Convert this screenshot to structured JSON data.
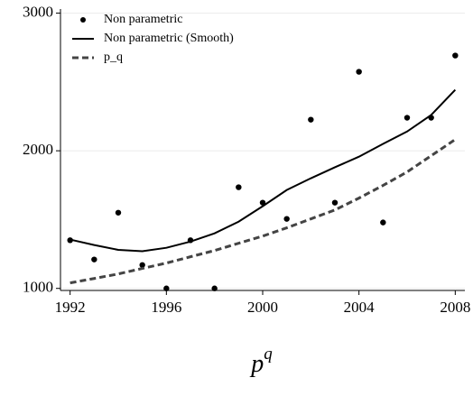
{
  "chart_data": {
    "type": "line",
    "x_label": {
      "base": "p",
      "superscript": "q"
    },
    "x": [
      1992,
      1993,
      1994,
      1995,
      1996,
      1997,
      1998,
      1999,
      2000,
      2001,
      2002,
      2003,
      2004,
      2005,
      2006,
      2007,
      2008
    ],
    "series": [
      {
        "name": "Non parametric",
        "color": "#000000",
        "style": "markers",
        "values": [
          1350,
          1210,
          1550,
          1170,
          1000,
          1350,
          1000,
          1735,
          1623,
          1505,
          2226,
          1623,
          2574,
          1479,
          2240,
          2240,
          2692
        ]
      },
      {
        "name": "Non parametric (Smooth)",
        "color": "#000000",
        "style": "solid",
        "values": [
          1355,
          1315,
          1280,
          1270,
          1295,
          1340,
          1400,
          1485,
          1597,
          1715,
          1800,
          1880,
          1957,
          2050,
          2140,
          2260,
          2443
        ]
      },
      {
        "name": "p_q",
        "color": "#444444",
        "style": "dashed",
        "values": [
          1040,
          1072,
          1105,
          1145,
          1184,
          1230,
          1275,
          1328,
          1380,
          1440,
          1505,
          1570,
          1656,
          1748,
          1846,
          1964,
          2082
        ]
      }
    ],
    "xlim": [
      1991.6,
      2008.4
    ],
    "xticks": [
      1992,
      1996,
      2000,
      2004,
      2008
    ],
    "ylim": [
      985,
      3030
    ],
    "yticks": [
      1000,
      2000,
      3000
    ],
    "grid": true,
    "legend": "upper-left"
  }
}
